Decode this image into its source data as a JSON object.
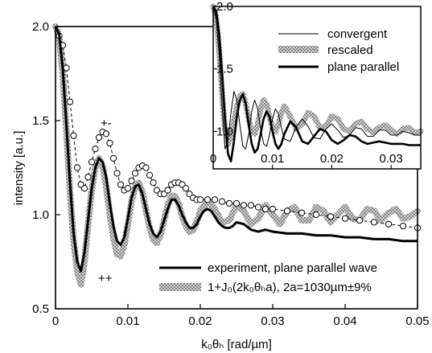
{
  "chart_data": [
    {
      "type": "line",
      "title": "",
      "xlabel": "k₀θₕ [rad/µm]",
      "ylabel": "intensity [a.u.]",
      "xlim": [
        0,
        0.05
      ],
      "ylim": [
        0.5,
        2.0
      ],
      "x_ticks": [
        "0",
        "0.01",
        "0.02",
        "0.03",
        "0.04",
        "0.05"
      ],
      "y_ticks": [
        "0.5",
        "1.0",
        "1.5",
        "2.0"
      ],
      "legend_position": "bottom-right",
      "annotations": [
        "+-",
        "++"
      ],
      "series": [
        {
          "name": "experiment, plane parallel wave",
          "style": "solid-black",
          "x": [
            0,
            0.0005,
            0.001,
            0.0015,
            0.002,
            0.0025,
            0.003,
            0.0035,
            0.004,
            0.0045,
            0.005,
            0.0055,
            0.006,
            0.0065,
            0.007,
            0.0075,
            0.008,
            0.0085,
            0.009,
            0.0095,
            0.01,
            0.0105,
            0.011,
            0.0115,
            0.012,
            0.0125,
            0.013,
            0.0135,
            0.014,
            0.0145,
            0.015,
            0.0155,
            0.016,
            0.0165,
            0.017,
            0.0175,
            0.018,
            0.0185,
            0.019,
            0.0195,
            0.02,
            0.0205,
            0.021,
            0.0215,
            0.022,
            0.0225,
            0.023,
            0.0235,
            0.024,
            0.0245,
            0.025,
            0.026,
            0.027,
            0.028,
            0.029,
            0.03,
            0.032,
            0.034,
            0.036,
            0.038,
            0.04,
            0.042,
            0.044,
            0.046,
            0.048,
            0.05
          ],
          "y": [
            2.0,
            1.96,
            1.78,
            1.48,
            1.17,
            0.9,
            0.75,
            0.7,
            0.8,
            0.97,
            1.14,
            1.25,
            1.3,
            1.28,
            1.2,
            1.06,
            0.94,
            0.86,
            0.84,
            0.88,
            0.98,
            1.09,
            1.15,
            1.16,
            1.11,
            1.03,
            0.95,
            0.9,
            0.88,
            0.91,
            0.97,
            1.03,
            1.08,
            1.08,
            1.05,
            1.0,
            0.96,
            0.93,
            0.93,
            0.95,
            0.99,
            1.02,
            1.03,
            1.02,
            0.99,
            0.96,
            0.94,
            0.93,
            0.93,
            0.94,
            0.96,
            0.95,
            0.92,
            0.91,
            0.92,
            0.91,
            0.9,
            0.9,
            0.89,
            0.89,
            0.88,
            0.88,
            0.87,
            0.87,
            0.86,
            0.86
          ]
        },
        {
          "name": "1+J₀(2k₀θₕa),  2a=1030µm±9%",
          "style": "hatched-grey-band",
          "x": [
            0,
            0.0005,
            0.001,
            0.0015,
            0.002,
            0.0025,
            0.003,
            0.0035,
            0.004,
            0.0045,
            0.005,
            0.0055,
            0.006,
            0.0065,
            0.007,
            0.0075,
            0.008,
            0.0085,
            0.009,
            0.0095,
            0.01,
            0.0105,
            0.011,
            0.0115,
            0.012,
            0.0125,
            0.013,
            0.0135,
            0.014,
            0.0145,
            0.015,
            0.0155,
            0.016,
            0.0165,
            0.017,
            0.0175,
            0.018,
            0.0185,
            0.019,
            0.0195,
            0.02,
            0.021,
            0.022,
            0.023,
            0.024,
            0.025,
            0.026,
            0.027,
            0.028,
            0.029,
            0.03,
            0.031,
            0.032,
            0.033,
            0.034,
            0.035,
            0.036,
            0.037,
            0.038,
            0.039,
            0.04,
            0.041,
            0.042,
            0.043,
            0.044,
            0.045,
            0.046,
            0.047,
            0.048,
            0.049,
            0.05
          ],
          "y": [
            2.0,
            1.95,
            1.75,
            1.45,
            1.12,
            0.86,
            0.7,
            0.63,
            0.75,
            0.95,
            1.13,
            1.25,
            1.3,
            1.26,
            1.15,
            1.0,
            0.88,
            0.79,
            0.78,
            0.84,
            0.95,
            1.07,
            1.15,
            1.17,
            1.12,
            1.02,
            0.93,
            0.87,
            0.85,
            0.89,
            0.97,
            1.05,
            1.1,
            1.1,
            1.06,
            0.99,
            0.94,
            0.91,
            0.92,
            0.96,
            1.02,
            1.07,
            1.03,
            0.96,
            0.97,
            1.05,
            1.02,
            0.95,
            0.98,
            1.05,
            1.0,
            0.95,
            1.02,
            1.04,
            0.97,
            0.97,
            1.04,
            1.02,
            0.96,
            1.0,
            1.04,
            0.98,
            0.97,
            1.03,
            1.02,
            0.97,
            1.01,
            1.03,
            0.98,
            0.99,
            1.02
          ]
        },
        {
          "name": "",
          "style": "open-circles-dashed",
          "x": [
            0.0005,
            0.001,
            0.0015,
            0.002,
            0.0025,
            0.003,
            0.0035,
            0.004,
            0.0045,
            0.005,
            0.0055,
            0.006,
            0.0065,
            0.007,
            0.0075,
            0.008,
            0.0085,
            0.009,
            0.0095,
            0.01,
            0.0105,
            0.011,
            0.0115,
            0.012,
            0.0125,
            0.013,
            0.0135,
            0.014,
            0.0145,
            0.015,
            0.0155,
            0.016,
            0.0165,
            0.017,
            0.0175,
            0.018,
            0.0185,
            0.019,
            0.0195,
            0.02,
            0.021,
            0.022,
            0.023,
            0.024,
            0.025,
            0.026,
            0.027,
            0.028,
            0.029,
            0.03,
            0.032,
            0.034,
            0.036,
            0.038,
            0.04,
            0.042,
            0.044,
            0.046,
            0.048,
            0.05
          ],
          "y": [
            1.95,
            1.9,
            1.78,
            1.6,
            1.42,
            1.25,
            1.16,
            1.14,
            1.2,
            1.28,
            1.35,
            1.41,
            1.44,
            1.43,
            1.38,
            1.3,
            1.22,
            1.16,
            1.13,
            1.14,
            1.18,
            1.22,
            1.25,
            1.26,
            1.25,
            1.21,
            1.17,
            1.13,
            1.11,
            1.11,
            1.13,
            1.16,
            1.17,
            1.17,
            1.16,
            1.14,
            1.11,
            1.09,
            1.08,
            1.08,
            1.08,
            1.08,
            1.07,
            1.06,
            1.06,
            1.05,
            1.05,
            1.04,
            1.03,
            1.03,
            1.02,
            1.01,
            1.0,
            0.99,
            0.98,
            0.97,
            0.96,
            0.95,
            0.94,
            0.93
          ]
        }
      ]
    },
    {
      "type": "line",
      "title": "",
      "xlabel": "",
      "ylabel": "",
      "xlim": [
        0,
        0.035
      ],
      "ylim": [
        0.7,
        2.0
      ],
      "x_ticks": [
        "0",
        "0.01",
        "0.02",
        "0.03"
      ],
      "y_ticks": [
        "1.0",
        "1.5",
        "2.0"
      ],
      "legend_position": "top-right",
      "series": [
        {
          "name": "convergent",
          "style": "thin-black",
          "x": [
            0,
            0.0005,
            0.001,
            0.0015,
            0.002,
            0.0025,
            0.003,
            0.0035,
            0.004,
            0.0045,
            0.005,
            0.0055,
            0.006,
            0.0065,
            0.007,
            0.0075,
            0.008,
            0.0085,
            0.009,
            0.0095,
            0.01,
            0.0105,
            0.011,
            0.0115,
            0.012,
            0.013,
            0.014,
            0.015,
            0.016,
            0.017,
            0.018,
            0.019,
            0.02,
            0.021,
            0.022,
            0.023,
            0.024,
            0.025,
            0.026,
            0.027,
            0.028,
            0.029,
            0.03,
            0.031,
            0.032,
            0.033,
            0.034,
            0.035
          ],
          "y": [
            2.0,
            1.9,
            1.62,
            1.2,
            0.86,
            0.92,
            1.15,
            1.32,
            1.25,
            1.05,
            0.88,
            0.86,
            0.98,
            1.16,
            1.25,
            1.18,
            1.02,
            0.9,
            0.88,
            0.97,
            1.1,
            1.18,
            1.14,
            1.03,
            0.94,
            0.92,
            1.04,
            1.1,
            1.04,
            0.95,
            0.94,
            1.02,
            1.06,
            1.01,
            0.95,
            0.97,
            1.03,
            1.02,
            0.96,
            0.96,
            1.01,
            1.01,
            0.97,
            0.97,
            1.0,
            0.99,
            0.97,
            0.97
          ]
        },
        {
          "name": "rescaled",
          "style": "hatched-grey-band",
          "x": [
            0,
            0.0005,
            0.001,
            0.0015,
            0.002,
            0.0025,
            0.003,
            0.0035,
            0.004,
            0.0045,
            0.005,
            0.0055,
            0.006,
            0.0065,
            0.007,
            0.0075,
            0.008,
            0.0085,
            0.009,
            0.0095,
            0.01,
            0.0105,
            0.011,
            0.0115,
            0.012,
            0.013,
            0.014,
            0.015,
            0.016,
            0.017,
            0.018,
            0.019,
            0.02,
            0.021,
            0.022,
            0.023,
            0.024,
            0.025,
            0.026,
            0.027,
            0.028,
            0.029,
            0.03,
            0.031,
            0.032,
            0.033,
            0.034,
            0.035
          ],
          "y": [
            2.0,
            1.92,
            1.65,
            1.3,
            1.02,
            0.9,
            0.95,
            1.08,
            1.2,
            1.28,
            1.3,
            1.22,
            1.1,
            1.0,
            0.98,
            1.06,
            1.18,
            1.25,
            1.22,
            1.12,
            1.03,
            1.0,
            1.06,
            1.15,
            1.2,
            1.12,
            1.02,
            1.06,
            1.15,
            1.12,
            1.03,
            1.04,
            1.12,
            1.1,
            1.02,
            1.0,
            1.06,
            1.08,
            1.02,
            0.99,
            1.03,
            1.05,
            1.01,
            0.98,
            1.02,
            1.03,
            0.99,
            1.0
          ]
        },
        {
          "name": "plane parallel",
          "style": "thick-black",
          "x": [
            0,
            0.0005,
            0.001,
            0.0015,
            0.002,
            0.0025,
            0.003,
            0.0035,
            0.004,
            0.0045,
            0.005,
            0.0055,
            0.006,
            0.0065,
            0.007,
            0.0075,
            0.008,
            0.0085,
            0.009,
            0.0095,
            0.01,
            0.0105,
            0.011,
            0.0115,
            0.012,
            0.013,
            0.014,
            0.015,
            0.016,
            0.017,
            0.018,
            0.019,
            0.02,
            0.021,
            0.022,
            0.023,
            0.024,
            0.025,
            0.026,
            0.027,
            0.028,
            0.029,
            0.03,
            0.031,
            0.032,
            0.033,
            0.034,
            0.035
          ],
          "y": [
            2.0,
            1.96,
            1.78,
            1.46,
            1.1,
            0.82,
            0.76,
            0.92,
            1.12,
            1.25,
            1.3,
            1.22,
            1.05,
            0.9,
            0.83,
            0.86,
            0.98,
            1.1,
            1.16,
            1.12,
            1.0,
            0.9,
            0.86,
            0.9,
            0.98,
            1.08,
            1.03,
            0.92,
            0.9,
            0.96,
            1.02,
            1.0,
            0.93,
            0.9,
            0.93,
            0.97,
            0.96,
            0.92,
            0.9,
            0.91,
            0.92,
            0.91,
            0.9,
            0.9,
            0.9,
            0.89,
            0.89,
            0.89
          ]
        }
      ]
    }
  ]
}
